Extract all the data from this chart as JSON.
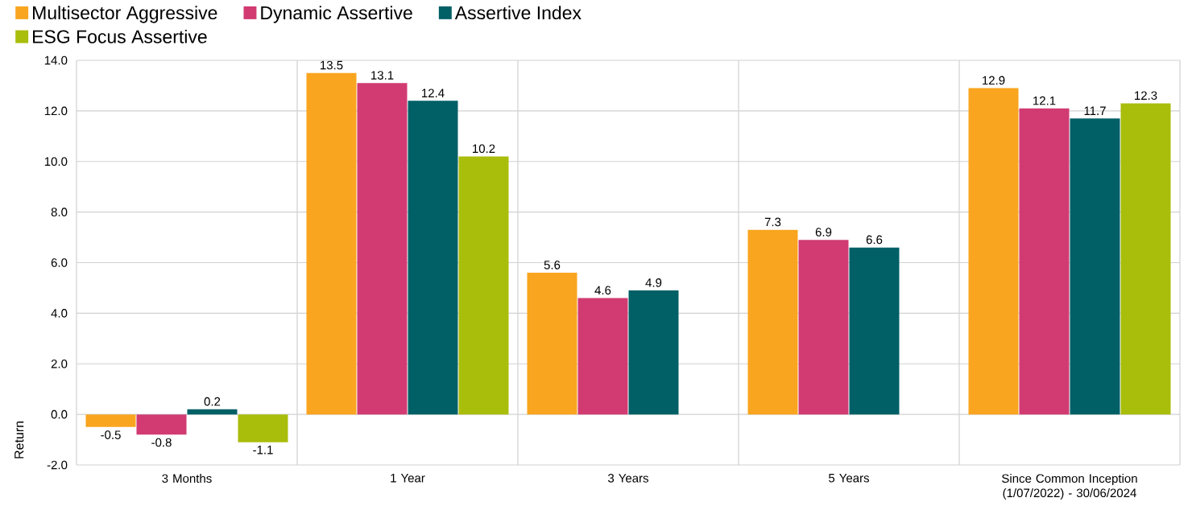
{
  "chart_data": {
    "type": "bar",
    "categories": [
      "3 Months",
      "1 Year",
      "3 Years",
      "5 Years",
      "Since Common Inception (1/07/2022) - 30/06/2024"
    ],
    "series": [
      {
        "name": "Multisector Aggressive",
        "color": "#f9a51f",
        "values": [
          -0.5,
          13.5,
          5.6,
          7.3,
          12.9
        ]
      },
      {
        "name": "Dynamic Assertive",
        "color": "#d13b72",
        "values": [
          -0.8,
          13.1,
          4.6,
          6.9,
          12.1
        ]
      },
      {
        "name": "Assertive Index",
        "color": "#006066",
        "values": [
          0.2,
          12.4,
          4.9,
          6.6,
          11.7
        ]
      },
      {
        "name": "ESG Focus Assertive",
        "color": "#a9bd0b",
        "values": [
          -1.1,
          10.2,
          null,
          null,
          12.3
        ]
      }
    ],
    "ylabel": "Return",
    "ylim": [
      -2,
      14
    ],
    "yticks": [
      {
        "value": -2,
        "label": "-2.0"
      },
      {
        "value": 0,
        "label": "0.0"
      },
      {
        "value": 2,
        "label": "2.0"
      },
      {
        "value": 4,
        "label": "4.0"
      },
      {
        "value": 6,
        "label": "6.0"
      },
      {
        "value": 8,
        "label": "8.0"
      },
      {
        "value": 10,
        "label": "10.0"
      },
      {
        "value": 12,
        "label": "12.0"
      },
      {
        "value": 14,
        "label": "14.0"
      }
    ],
    "grid": true,
    "legend": "top",
    "data_labels": true
  }
}
